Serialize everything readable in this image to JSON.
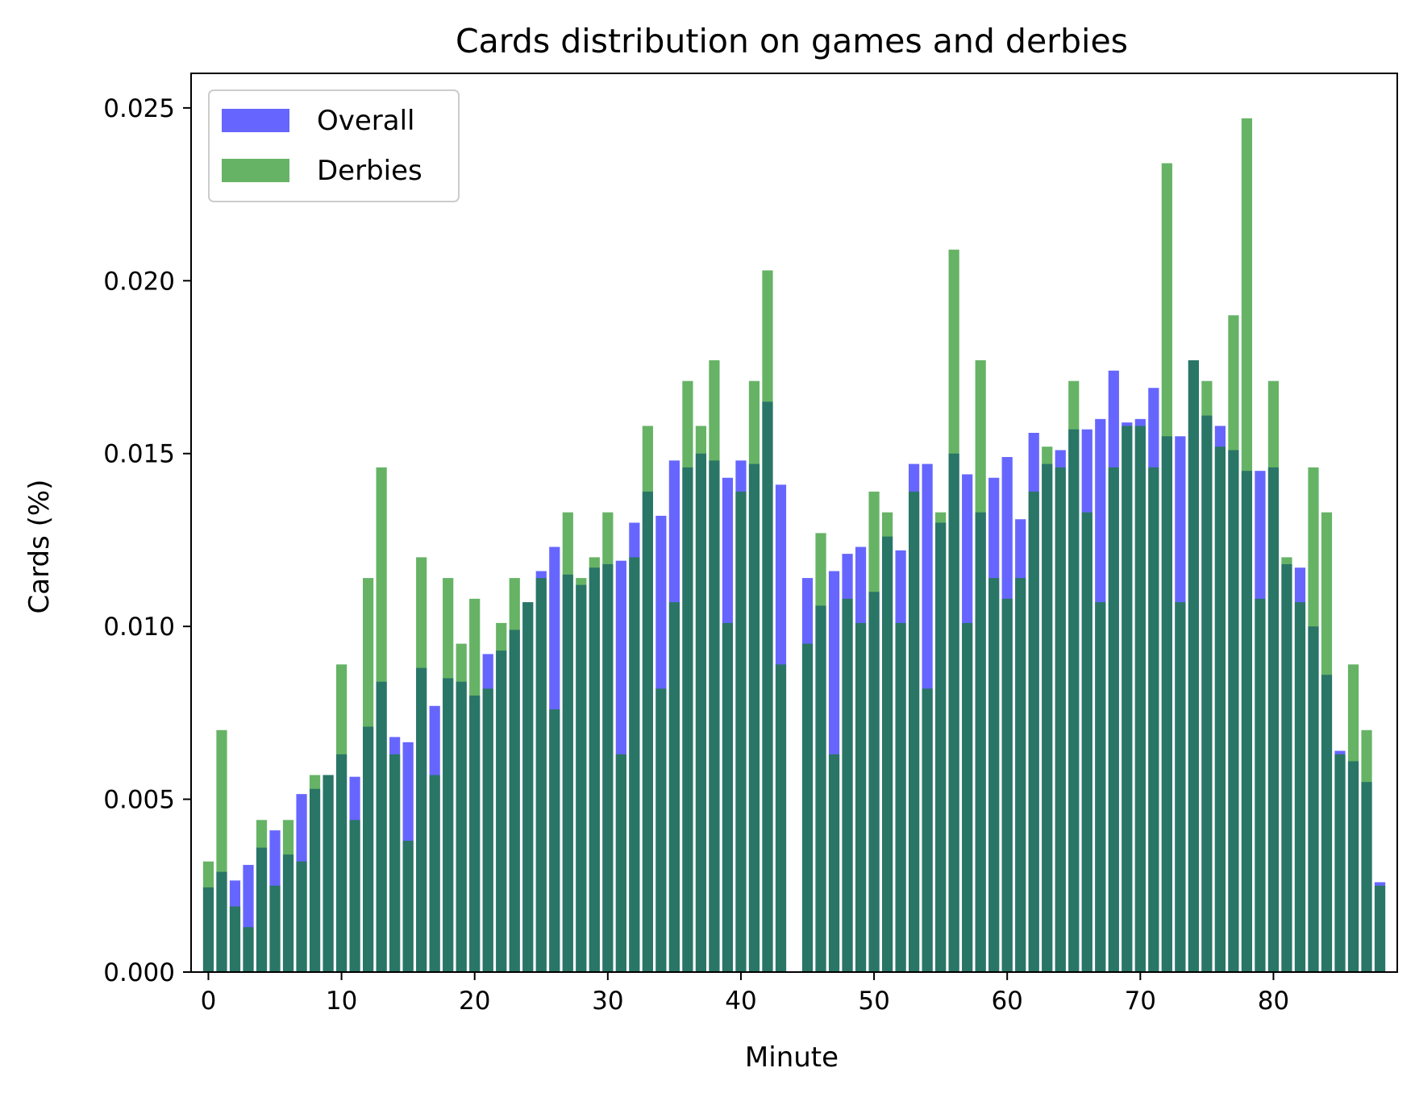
{
  "chart_data": {
    "type": "bar",
    "title": "Cards distribution on games and derbies",
    "xlabel": "Minute",
    "ylabel": "Cards (%)",
    "xlim": [
      -1.3,
      89.3
    ],
    "ylim": [
      0,
      0.026
    ],
    "xticks": [
      0,
      10,
      20,
      30,
      40,
      50,
      60,
      70,
      80
    ],
    "xtick_labels": [
      "0",
      "10",
      "20",
      "30",
      "40",
      "50",
      "60",
      "70",
      "80"
    ],
    "yticks": [
      0,
      0.005,
      0.01,
      0.015,
      0.02,
      0.025
    ],
    "ytick_labels": [
      "0.000",
      "0.005",
      "0.010",
      "0.015",
      "0.020",
      "0.025"
    ],
    "legend_position": "upper-left",
    "grid": false,
    "x": [
      0,
      1,
      2,
      3,
      4,
      5,
      6,
      7,
      8,
      9,
      10,
      11,
      12,
      13,
      14,
      15,
      16,
      17,
      18,
      19,
      20,
      21,
      22,
      23,
      24,
      25,
      26,
      27,
      28,
      29,
      30,
      31,
      32,
      33,
      34,
      35,
      36,
      37,
      38,
      39,
      40,
      41,
      42,
      43,
      44,
      45,
      46,
      47,
      48,
      49,
      50,
      51,
      52,
      53,
      54,
      55,
      56,
      57,
      58,
      59,
      60,
      61,
      62,
      63,
      64,
      65,
      66,
      67,
      68,
      69,
      70,
      71,
      72,
      73,
      74,
      75,
      76,
      77,
      78,
      79,
      80,
      81,
      82,
      83,
      84,
      85,
      86,
      87,
      88
    ],
    "series": [
      {
        "name": "Overall",
        "color": "#0000ff",
        "alpha": 0.6,
        "values": [
          0.00245,
          0.0029,
          0.00265,
          0.0031,
          0.0036,
          0.0041,
          0.0034,
          0.00515,
          0.0053,
          0.0057,
          0.0063,
          0.00565,
          0.0071,
          0.0084,
          0.0068,
          0.00665,
          0.0088,
          0.0077,
          0.0085,
          0.0084,
          0.008,
          0.0092,
          0.0093,
          0.0099,
          0.0107,
          0.0116,
          0.0123,
          0.0115,
          0.0112,
          0.0117,
          0.0118,
          0.0119,
          0.013,
          0.0139,
          0.0132,
          0.0148,
          0.0146,
          0.015,
          0.0148,
          0.0143,
          0.0148,
          0.0147,
          0.0165,
          0.0141,
          0,
          0.0114,
          0.0106,
          0.0116,
          0.0121,
          0.0123,
          0.011,
          0.0126,
          0.0122,
          0.0147,
          0.0147,
          0.013,
          0.015,
          0.0144,
          0.0133,
          0.0143,
          0.0149,
          0.0131,
          0.0156,
          0.0147,
          0.0151,
          0.0157,
          0.0157,
          0.016,
          0.0174,
          0.0159,
          0.016,
          0.0169,
          0.0155,
          0.0155,
          0.0177,
          0.0161,
          0.0158,
          0.0151,
          0.0145,
          0.0145,
          0.0146,
          0.0118,
          0.0117,
          0.01,
          0.0086,
          0.0064,
          0.0061,
          0.0055,
          0.0026
        ]
      },
      {
        "name": "Derbies",
        "color": "#008000",
        "alpha": 0.6,
        "values": [
          0.0032,
          0.007,
          0.0019,
          0.0013,
          0.0044,
          0.0025,
          0.0044,
          0.0032,
          0.0057,
          0.0057,
          0.0089,
          0.0044,
          0.0114,
          0.0146,
          0.0063,
          0.0038,
          0.012,
          0.0057,
          0.0114,
          0.0095,
          0.0108,
          0.0082,
          0.0101,
          0.0114,
          0.0107,
          0.0114,
          0.0076,
          0.0133,
          0.0114,
          0.012,
          0.0133,
          0.0063,
          0.012,
          0.0158,
          0.0082,
          0.0107,
          0.0171,
          0.0158,
          0.0177,
          0.0101,
          0.0139,
          0.0171,
          0.0203,
          0.0089,
          0,
          0.0095,
          0.0127,
          0.0063,
          0.0108,
          0.0101,
          0.0139,
          0.0133,
          0.0101,
          0.0139,
          0.0082,
          0.0133,
          0.0209,
          0.0101,
          0.0177,
          0.0114,
          0.0108,
          0.0114,
          0.0139,
          0.0152,
          0.0146,
          0.0171,
          0.0133,
          0.0107,
          0.0146,
          0.0158,
          0.0158,
          0.0146,
          0.0234,
          0.0107,
          0.0177,
          0.0171,
          0.0152,
          0.019,
          0.0247,
          0.0108,
          0.0171,
          0.012,
          0.0107,
          0.0146,
          0.0133,
          0.0063,
          0.0089,
          0.007,
          0.0025
        ]
      }
    ]
  }
}
